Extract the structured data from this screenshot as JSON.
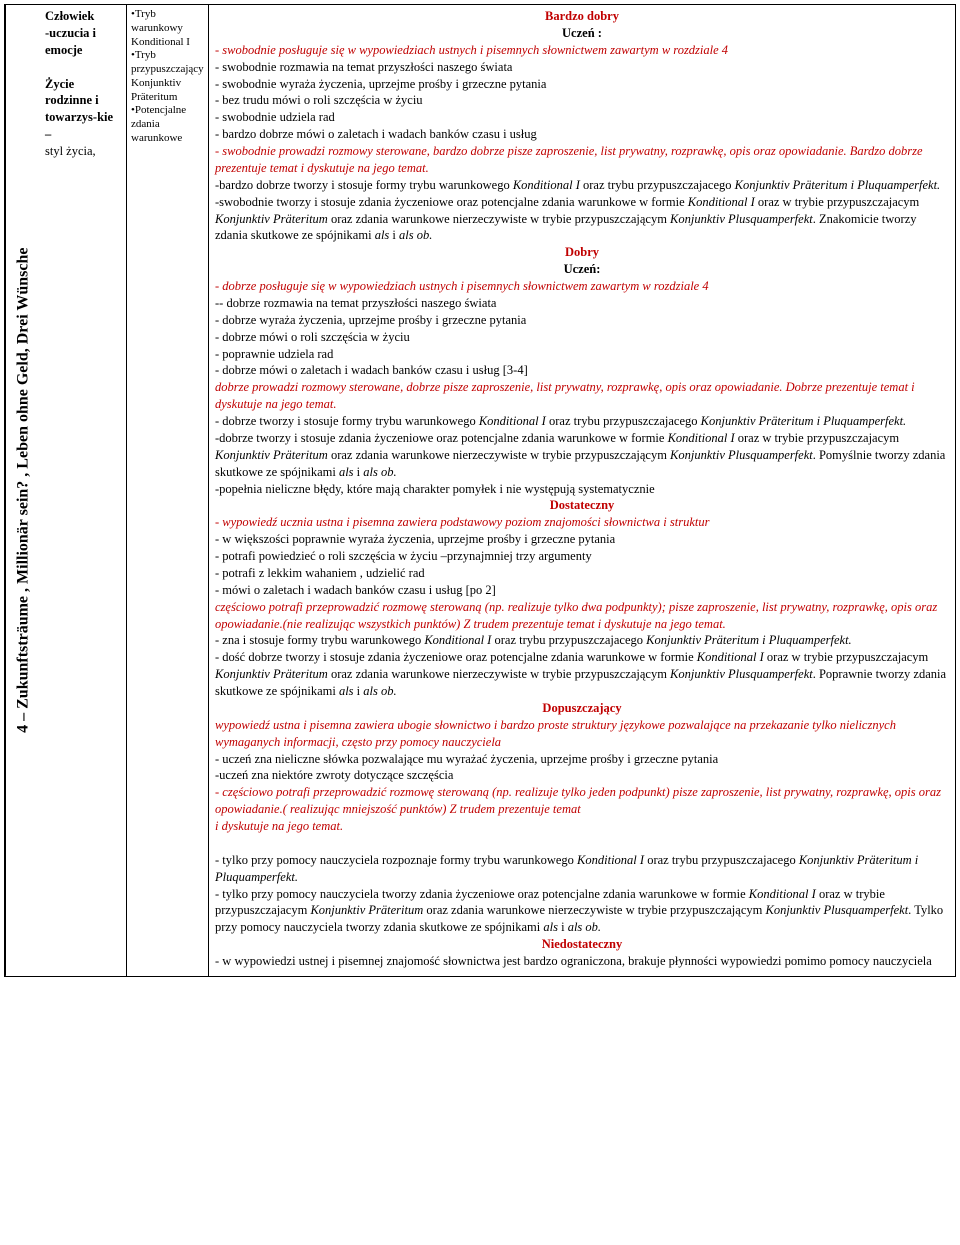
{
  "colors": {
    "red": "#c00000",
    "black": "#000000",
    "bg": "#ffffff"
  },
  "col1": "4 – Zukunftsträume , Millionär sein? , Leben ohne Geld,  Drei Wünsche",
  "col2": {
    "l1": "Człowiek",
    "l2": "-uczucia i emocje",
    "l3": "",
    "l4": "Życie rodzinne i towarzys-kie –",
    "l5": "styl życia,"
  },
  "col3": {
    "t1": "•Tryb warunkowy Konditional I",
    "t2": "•Tryb przypuszczający",
    "t3": "Konjunktiv Präteritum",
    "t4": "•Potencjalne zdania warunkowe"
  },
  "g1": {
    "title": "Bardzo dobry",
    "sub": "Uczeń :",
    "p1": "- swobodnie posługuje się w wypowiedziach ustnych i pisemnych słownictwem zawartym w rozdziale 4",
    "p2": "- swobodnie rozmawia na temat przyszłości naszego świata",
    "p3": "- swobodnie wyraża życzenia, uprzejme prośby i grzeczne pytania",
    "p4": "- bez trudu  mówi o roli szczęścia w życiu",
    "p5": "- swobodnie udziela rad",
    "p6": "- bardzo dobrze mówi o zaletach i wadach banków czasu i usług",
    "p7": "- swobodnie prowadzi rozmowy sterowane, bardzo dobrze pisze zaproszenie, list prywatny, rozprawkę, opis oraz opowiadanie. Bardzo dobrze prezentuje temat i dyskutuje na jego temat.",
    "p8a": "-bardzo dobrze tworzy i stosuje formy trybu warunkowego  ",
    "p8b": "Konditional I",
    "p8c": " oraz trybu przypuszczajacego ",
    "p8d": "Konjunktiv Präteritum i Pluquamperfekt.",
    "p9a": "-swobodnie tworzy i stosuje zdania życzeniowe oraz potencjalne zdania warunkowe w formie ",
    "p9b": "Konditional I",
    "p9c": " oraz w trybie przypuszczajacym ",
    "p9d": "Konjunktiv Präteritum",
    "p9e": " oraz zdania warunkowe nierzeczywiste w trybie przypuszczającym ",
    "p9f": "Konjunktiv Plusquamperfekt",
    "p9g": ". Znakomicie tworzy zdania skutkowe ze spójnikami ",
    "p9h": "als",
    "p9i": " i ",
    "p9j": "als ob."
  },
  "g2": {
    "title": "Dobry",
    "sub": "Uczeń:",
    "p1": "- dobrze posługuje się w wypowiedziach ustnych i pisemnych słownictwem zawartym w rozdziale 4",
    "p2": "-- dobrze  rozmawia na temat przyszłości naszego świata",
    "p3": "- dobrze wyraża życzenia, uprzejme prośby i grzeczne pytania",
    "p4": "- dobrze  mówi o roli szczęścia w życiu",
    "p5": "- poprawnie udziela rad",
    "p6": "- dobrze mówi o zaletach i wadach banków czasu i usług [3-4]",
    "p7": " dobrze prowadzi rozmowy sterowane, dobrze pisze zaproszenie, list prywatny, rozprawkę, opis oraz opowiadanie. Dobrze prezentuje temat i dyskutuje na jego temat.",
    "p8a": "- dobrze tworzy i stosuje formy trybu warunkowego  ",
    "p8b": "Konditional I",
    "p8c": " oraz trybu przypuszczajacego ",
    "p8d": "Konjunktiv Präteritum i Pluquamperfekt.",
    "p9a": "-dobrze tworzy i stosuje zdania życzeniowe oraz potencjalne zdania warunkowe w formie ",
    "p9b": "Konditional I",
    "p9c": " oraz w trybie przypuszczajacym ",
    "p9d": "Konjunktiv Präteritum",
    "p9e": " oraz zdania warunkowe nierzeczywiste w trybie przypuszczającym ",
    "p9f": "Konjunktiv Plusquamperfekt",
    "p9g": ". Pomyślnie  tworzy zdania skutkowe ze spójnikami ",
    "p9h": "als",
    "p9i": " i ",
    "p9j": "als ob.",
    "p10": "-popełnia nieliczne błędy, które mają charakter pomyłek i nie występują systematycznie"
  },
  "g3": {
    "title": "Dostateczny",
    "p1": "- wypowiedź ucznia ustna i pisemna zawiera podstawowy poziom znajomości słownictwa i struktur",
    "p2": "- w większości poprawnie wyraża życzenia, uprzejme prośby i grzeczne pytania",
    "p3": "- potrafi powiedzieć o roli szczęścia w życiu –przynajmniej trzy argumenty",
    "p4": "- potrafi z lekkim wahaniem , udzielić rad",
    "p5": "- mówi o zaletach i wadach banków czasu i usług [po 2]",
    "p6": "częściowo potrafi przeprowadzić rozmowę sterowaną (np. realizuje tylko dwa podpunkty); pisze zaproszenie, list prywatny, rozprawkę, opis oraz opowiadanie.(nie realizując wszystkich punktów) Z trudem prezentuje temat  i dyskutuje na jego temat.",
    "p7a": "- zna i stosuje formy trybu warunkowego  ",
    "p7b": "Konditional I",
    "p7c": " oraz trybu przypuszczajacego ",
    "p7d": "Konjunktiv Präteritum i Pluquamperfekt.",
    "p8a": "- dość dobrze tworzy i stosuje zdania życzeniowe oraz potencjalne zdania warunkowe w formie ",
    "p8b": "Konditional I",
    "p8c": " oraz w trybie przypuszczajacym ",
    "p8d": "Konjunktiv Präteritum",
    "p8e": " oraz zdania warunkowe nierzeczywiste w trybie przypuszczającym ",
    "p8f": "Konjunktiv Plusquamperfekt",
    "p8g": ". Poprawnie  tworzy zdania skutkowe ze spójnikami ",
    "p8h": "als",
    "p8i": " i ",
    "p8j": "als ob."
  },
  "g4": {
    "title": "Dopuszczający",
    "p1": "wypowiedź ustna i pisemna zawiera ubogie słownictwo i bardzo proste struktury językowe pozwalające na przekazanie tylko nielicznych wymaganych informacji, często przy pomocy nauczyciela",
    "p2": "- uczeń zna nieliczne słówka pozwalające mu wyrażać życzenia, uprzejme prośby i grzeczne pytania",
    "p3": "-uczeń zna niektóre zwroty dotyczące szczęścia",
    "p4": "- częściowo potrafi przeprowadzić rozmowę sterowaną (np. realizuje tylko jeden podpunkt) pisze zaproszenie, list prywatny, rozprawkę, opis oraz opowiadanie.( realizując mniejszość punktów) Z trudem prezentuje temat",
    "p4b": " i dyskutuje na jego temat.",
    "p5a": "- tylko przy pomocy nauczyciela rozpoznaje formy trybu warunkowego  ",
    "p5b": "Konditional I",
    "p5c": " oraz trybu przypuszczajacego ",
    "p5d": "Konjunktiv Präteritum i Pluquamperfekt.",
    "p6a": "- tylko przy pomocy nauczyciela tworzy zdania życzeniowe oraz potencjalne zdania warunkowe w formie ",
    "p6b": "Konditional I",
    "p6c": " oraz w trybie przypuszczajacym ",
    "p6d": "Konjunktiv Präteritum",
    "p6e": " oraz zdania warunkowe nierzeczywiste w trybie przypuszczającym ",
    "p6f": "Konjunktiv Plusquamperfekt",
    "p6g": ". Tylko przy pomocy nauczyciela tworzy zdania skutkowe ze spójnikami ",
    "p6h": "als",
    "p6i": " i ",
    "p6j": "als ob."
  },
  "g5": {
    "title": "Niedostateczny",
    "p1": "- w wypowiedzi ustnej i pisemnej znajomość słownictwa jest bardzo ograniczona, brakuje płynności wypowiedzi pomimo pomocy nauczyciela"
  }
}
